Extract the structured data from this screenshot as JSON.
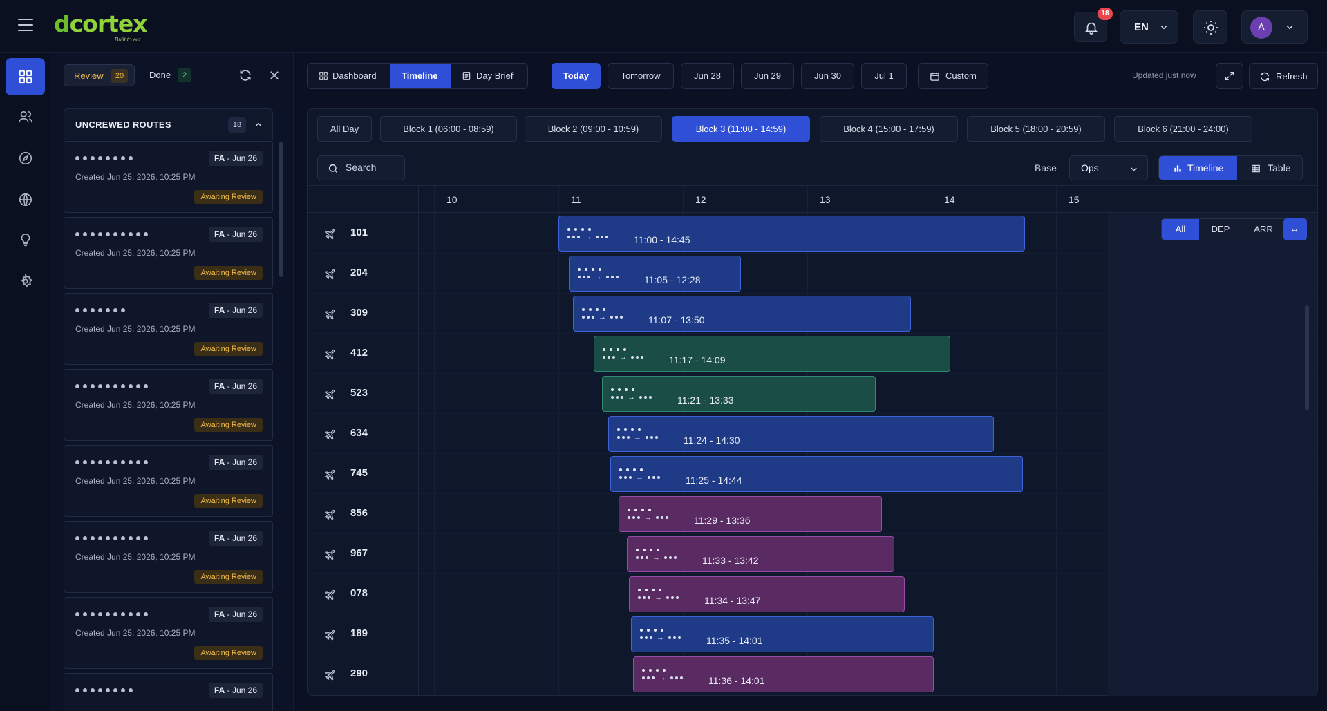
{
  "app": {
    "logo_text": "cortex",
    "logo_prefix": "d",
    "tagline": "Built to act",
    "notifications_count": "18",
    "language": "EN",
    "user_initial": "A"
  },
  "colors": {
    "accent": "#2f4fd6",
    "logo_green": "#8fd23a",
    "awaiting": "#f0b84a",
    "bar_blue": "#1f3a86",
    "bar_green": "#1a4d45",
    "bar_purple": "#5a2a62"
  },
  "rail": {
    "items": [
      "dashboard-icon",
      "users-icon",
      "compass-icon",
      "globe-icon",
      "lightbulb-icon",
      "settings-icon"
    ]
  },
  "review_panel": {
    "tabs": {
      "review_label": "Review",
      "review_count": "20",
      "done_label": "Done",
      "done_count": "2"
    },
    "section_title": "UNCREWED ROUTES",
    "section_count": "18",
    "routes": [
      {
        "tag_role": "FA",
        "tag_date": "- Jun 26",
        "created": "Created Jun 25, 2026, 10:25 PM",
        "status": "Awaiting Review"
      },
      {
        "tag_role": "FA",
        "tag_date": "- Jun 26",
        "created": "Created Jun 25, 2026, 10:25 PM",
        "status": "Awaiting Review"
      },
      {
        "tag_role": "FA",
        "tag_date": "- Jun 26",
        "created": "Created Jun 25, 2026, 10:25 PM",
        "status": "Awaiting Review"
      },
      {
        "tag_role": "FA",
        "tag_date": "- Jun 26",
        "created": "Created Jun 25, 2026, 10:25 PM",
        "status": "Awaiting Review"
      },
      {
        "tag_role": "FA",
        "tag_date": "- Jun 26",
        "created": "Created Jun 25, 2026, 10:25 PM",
        "status": "Awaiting Review"
      },
      {
        "tag_role": "FA",
        "tag_date": "- Jun 26",
        "created": "Created Jun 25, 2026, 10:25 PM",
        "status": "Awaiting Review"
      },
      {
        "tag_role": "FA",
        "tag_date": "- Jun 26",
        "created": "Created Jun 25, 2026, 10:25 PM",
        "status": "Awaiting Review"
      },
      {
        "tag_role": "FA",
        "tag_date": "- Jun 26",
        "created": "",
        "status": ""
      }
    ]
  },
  "toolbar": {
    "view_tabs": [
      "Dashboard",
      "Timeline",
      "Day Brief"
    ],
    "active_view": "Timeline",
    "days": [
      "Today",
      "Tomorrow",
      "Jun 28",
      "Jun 29",
      "Jun 30",
      "Jul 1"
    ],
    "active_day": "Today",
    "custom_label": "Custom",
    "updated": "Updated just now",
    "refresh_label": "Refresh"
  },
  "blocks": {
    "items": [
      "All Day",
      "Block 1 (06:00 - 08:59)",
      "Block 2 (09:00 - 10:59)",
      "Block 3 (11:00 - 14:59)",
      "Block 4 (15:00 - 17:59)",
      "Block 5 (18:00 - 20:59)",
      "Block 6 (21:00 - 24:00)"
    ],
    "active": "Block 3 (11:00 - 14:59)"
  },
  "filters": {
    "search_placeholder": "Search",
    "base_label": "Base",
    "base_value": "Ops",
    "mode_timeline": "Timeline",
    "mode_table": "Table",
    "direction": [
      "All",
      "DEP",
      "ARR"
    ],
    "active_direction": "All",
    "fit_glyph": "↔"
  },
  "timeline": {
    "hours": [
      "10",
      "11",
      "12",
      "13",
      "14",
      "15"
    ],
    "flights": [
      {
        "number": "101",
        "start": "11:00",
        "end": "14:45",
        "color": "blue"
      },
      {
        "number": "204",
        "start": "11:05",
        "end": "12:28",
        "color": "blue"
      },
      {
        "number": "309",
        "start": "11:07",
        "end": "13:50",
        "color": "blue"
      },
      {
        "number": "412",
        "start": "11:17",
        "end": "14:09",
        "color": "green"
      },
      {
        "number": "523",
        "start": "11:21",
        "end": "13:33",
        "color": "green"
      },
      {
        "number": "634",
        "start": "11:24",
        "end": "14:30",
        "color": "blue"
      },
      {
        "number": "745",
        "start": "11:25",
        "end": "14:44",
        "color": "blue"
      },
      {
        "number": "856",
        "start": "11:29",
        "end": "13:36",
        "color": "purple"
      },
      {
        "number": "967",
        "start": "11:33",
        "end": "13:42",
        "color": "purple"
      },
      {
        "number": "078",
        "start": "11:34",
        "end": "13:47",
        "color": "purple"
      },
      {
        "number": "189",
        "start": "11:35",
        "end": "14:01",
        "color": "blue"
      },
      {
        "number": "290",
        "start": "11:36",
        "end": "14:01",
        "color": "purple"
      }
    ]
  }
}
